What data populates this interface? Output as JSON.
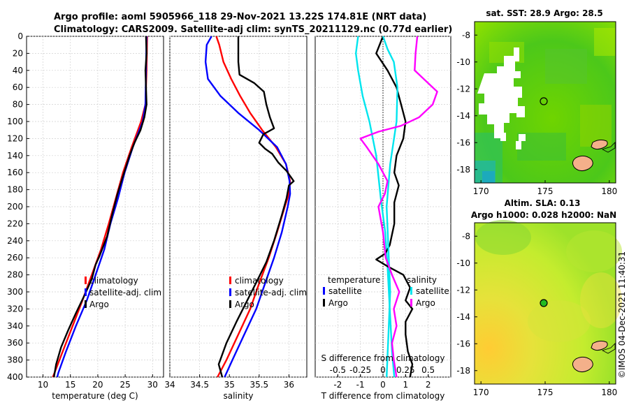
{
  "title": {
    "line1": "Argo profile: aoml 5905966_118 29-Nov-2021 13.22S 174.81E (NRT data)",
    "line2": "Climatology: CARS2009. Satellite-adj clim: synTS_20211129.nc (0.77d earlier)"
  },
  "y_ticks": [
    "0",
    "20",
    "40",
    "60",
    "80",
    "100",
    "120",
    "140",
    "160",
    "180",
    "200",
    "220",
    "240",
    "260",
    "280",
    "300",
    "320",
    "340",
    "360",
    "380",
    "400"
  ],
  "chart_data": [
    {
      "type": "line",
      "id": "temperature",
      "xlabel": "temperature (deg C)",
      "ylabel": "pressure",
      "xlim": [
        7,
        32
      ],
      "ylim": [
        400,
        0
      ],
      "x_ticks": [
        "10",
        "15",
        "20",
        "25",
        "30"
      ],
      "x_tick_values": [
        10,
        15,
        20,
        25,
        30
      ],
      "legend": [
        "climatology",
        "satellite-adj. clim",
        "Argo"
      ],
      "series": [
        {
          "name": "climatology",
          "color": "#ff0000",
          "points": [
            [
              29.0,
              0
            ],
            [
              28.9,
              40
            ],
            [
              28.7,
              80
            ],
            [
              27.9,
              100
            ],
            [
              26.2,
              130
            ],
            [
              24.6,
              160
            ],
            [
              23.3,
              190
            ],
            [
              22.0,
              220
            ],
            [
              20.6,
              250
            ],
            [
              18.9,
              280
            ],
            [
              17.2,
              310
            ],
            [
              15.4,
              340
            ],
            [
              13.6,
              370
            ],
            [
              12.1,
              395
            ],
            [
              11.8,
              400
            ]
          ]
        },
        {
          "name": "satellite-adj. clim",
          "color": "#0000ff",
          "points": [
            [
              28.9,
              0
            ],
            [
              28.8,
              40
            ],
            [
              28.7,
              80
            ],
            [
              28.2,
              100
            ],
            [
              26.4,
              130
            ],
            [
              24.9,
              160
            ],
            [
              23.7,
              190
            ],
            [
              22.3,
              220
            ],
            [
              21.2,
              250
            ],
            [
              19.6,
              280
            ],
            [
              18.0,
              310
            ],
            [
              16.0,
              340
            ],
            [
              14.2,
              370
            ],
            [
              12.8,
              395
            ],
            [
              12.6,
              400
            ]
          ]
        },
        {
          "name": "Argo",
          "color": "#000000",
          "points": [
            [
              28.8,
              0
            ],
            [
              28.9,
              20
            ],
            [
              28.7,
              40
            ],
            [
              28.8,
              60
            ],
            [
              28.9,
              80
            ],
            [
              28.5,
              95
            ],
            [
              27.8,
              110
            ],
            [
              26.7,
              125
            ],
            [
              25.8,
              140
            ],
            [
              24.8,
              160
            ],
            [
              23.6,
              185
            ],
            [
              22.6,
              210
            ],
            [
              21.7,
              235
            ],
            [
              20.3,
              258
            ],
            [
              19.6,
              268
            ],
            [
              18.9,
              285
            ],
            [
              17.5,
              305
            ],
            [
              16.0,
              325
            ],
            [
              14.6,
              345
            ],
            [
              13.3,
              365
            ],
            [
              12.4,
              385
            ],
            [
              12.0,
              400
            ]
          ]
        }
      ]
    },
    {
      "type": "line",
      "id": "salinity",
      "xlabel": "salinity",
      "ylabel": "pressure",
      "xlim": [
        34.0,
        36.3
      ],
      "ylim": [
        400,
        0
      ],
      "x_ticks": [
        "34",
        "34.5",
        "35",
        "35.5",
        "36"
      ],
      "x_tick_values": [
        34.0,
        34.5,
        35.0,
        35.5,
        36.0
      ],
      "legend": [
        "climatology",
        "satellite-adj. clim",
        "Argo"
      ],
      "series": [
        {
          "name": "climatology",
          "color": "#ff0000",
          "points": [
            [
              34.78,
              0
            ],
            [
              34.83,
              10
            ],
            [
              34.9,
              30
            ],
            [
              35.03,
              50
            ],
            [
              35.18,
              70
            ],
            [
              35.35,
              90
            ],
            [
              35.55,
              110
            ],
            [
              35.78,
              130
            ],
            [
              35.95,
              150
            ],
            [
              36.02,
              170
            ],
            [
              36.0,
              185
            ],
            [
              35.93,
              200
            ],
            [
              35.8,
              230
            ],
            [
              35.66,
              260
            ],
            [
              35.5,
              290
            ],
            [
              35.35,
              320
            ],
            [
              35.15,
              350
            ],
            [
              34.95,
              380
            ],
            [
              34.8,
              400
            ]
          ]
        },
        {
          "name": "satellite-adj. clim",
          "color": "#0000ff",
          "points": [
            [
              34.7,
              0
            ],
            [
              34.62,
              10
            ],
            [
              34.6,
              30
            ],
            [
              34.64,
              50
            ],
            [
              34.85,
              70
            ],
            [
              35.15,
              90
            ],
            [
              35.5,
              110
            ],
            [
              35.8,
              130
            ],
            [
              35.95,
              150
            ],
            [
              36.01,
              170
            ],
            [
              36.02,
              185
            ],
            [
              35.98,
              200
            ],
            [
              35.88,
              230
            ],
            [
              35.75,
              260
            ],
            [
              35.6,
              290
            ],
            [
              35.45,
              320
            ],
            [
              35.25,
              350
            ],
            [
              35.05,
              380
            ],
            [
              34.92,
              400
            ]
          ]
        },
        {
          "name": "Argo",
          "color": "#000000",
          "points": [
            [
              35.15,
              0
            ],
            [
              35.15,
              30
            ],
            [
              35.17,
              45
            ],
            [
              35.42,
              55
            ],
            [
              35.58,
              65
            ],
            [
              35.62,
              80
            ],
            [
              35.68,
              95
            ],
            [
              35.75,
              108
            ],
            [
              35.57,
              115
            ],
            [
              35.5,
              125
            ],
            [
              35.6,
              132
            ],
            [
              35.72,
              138
            ],
            [
              35.82,
              148
            ],
            [
              35.96,
              158
            ],
            [
              36.08,
              170
            ],
            [
              36.0,
              175
            ],
            [
              35.96,
              190
            ],
            [
              35.88,
              210
            ],
            [
              35.75,
              240
            ],
            [
              35.62,
              265
            ],
            [
              35.48,
              285
            ],
            [
              35.3,
              310
            ],
            [
              35.12,
              335
            ],
            [
              34.95,
              360
            ],
            [
              34.82,
              385
            ],
            [
              34.88,
              400
            ]
          ]
        }
      ]
    },
    {
      "type": "line",
      "id": "differences",
      "xlabel": "T difference from climatology",
      "x2label": "S difference from climatology",
      "ylabel": "pressure",
      "xlim": [
        -3,
        3
      ],
      "ylim": [
        400,
        0
      ],
      "x_ticks": [
        "-2",
        "-1",
        "0",
        "1",
        "2"
      ],
      "x_tick_values": [
        -2,
        -1,
        0,
        1,
        2
      ],
      "x2_ticks": [
        "-0.5",
        "-0.25",
        "0",
        "0.25",
        "0.5"
      ],
      "x2_tick_values": [
        -0.5,
        -0.25,
        0,
        0.25,
        0.5
      ],
      "legend_temperature_title": "temperature",
      "legend_salinity_title": "salinity",
      "legend_temperature": [
        "satellite",
        "Argo"
      ],
      "legend_salinity": [
        "satellite",
        "Argo"
      ],
      "series": [
        {
          "name": "temperature satellite",
          "color": "#00e5ee",
          "axis": "T",
          "points": [
            [
              -1.1,
              0
            ],
            [
              -1.2,
              20
            ],
            [
              -1.1,
              40
            ],
            [
              -0.9,
              70
            ],
            [
              -0.6,
              100
            ],
            [
              -0.3,
              140
            ],
            [
              -0.1,
              190
            ],
            [
              0.1,
              230
            ],
            [
              0.2,
              270
            ],
            [
              0.3,
              320
            ],
            [
              0.4,
              370
            ],
            [
              0.5,
              400
            ]
          ]
        },
        {
          "name": "temperature Argo",
          "color": "#000000",
          "axis": "T",
          "points": [
            [
              0.0,
              0
            ],
            [
              -0.3,
              20
            ],
            [
              0.2,
              40
            ],
            [
              0.6,
              60
            ],
            [
              0.7,
              70
            ],
            [
              0.8,
              80
            ],
            [
              1.0,
              100
            ],
            [
              0.9,
              120
            ],
            [
              0.6,
              140
            ],
            [
              0.5,
              160
            ],
            [
              0.7,
              175
            ],
            [
              0.5,
              195
            ],
            [
              0.5,
              220
            ],
            [
              0.3,
              245
            ],
            [
              0.1,
              255
            ],
            [
              -0.3,
              262
            ],
            [
              0.2,
              270
            ],
            [
              0.9,
              280
            ],
            [
              1.2,
              295
            ],
            [
              1.0,
              310
            ],
            [
              1.3,
              320
            ],
            [
              1.0,
              335
            ],
            [
              1.0,
              350
            ],
            [
              1.1,
              370
            ],
            [
              1.3,
              385
            ],
            [
              1.2,
              400
            ]
          ]
        },
        {
          "name": "salinity satellite",
          "color": "#00e5ee",
          "axis": "S",
          "points": [
            [
              0.0,
              0
            ],
            [
              0.05,
              15
            ],
            [
              0.12,
              30
            ],
            [
              0.16,
              60
            ],
            [
              0.15,
              100
            ],
            [
              0.08,
              150
            ],
            [
              0.04,
              200
            ],
            [
              0.06,
              250
            ],
            [
              0.08,
              300
            ],
            [
              0.06,
              350
            ],
            [
              0.04,
              400
            ]
          ]
        },
        {
          "name": "salinity Argo",
          "color": "#ff00ff",
          "axis": "S",
          "points": [
            [
              0.38,
              0
            ],
            [
              0.36,
              20
            ],
            [
              0.35,
              40
            ],
            [
              0.5,
              55
            ],
            [
              0.6,
              65
            ],
            [
              0.55,
              80
            ],
            [
              0.4,
              95
            ],
            [
              0.2,
              105
            ],
            [
              -0.05,
              112
            ],
            [
              -0.25,
              120
            ],
            [
              -0.18,
              130
            ],
            [
              -0.05,
              150
            ],
            [
              0.05,
              170
            ],
            [
              0.02,
              185
            ],
            [
              -0.05,
              200
            ],
            [
              0.0,
              230
            ],
            [
              0.03,
              260
            ],
            [
              0.1,
              280
            ],
            [
              0.18,
              300
            ],
            [
              0.12,
              320
            ],
            [
              0.15,
              340
            ],
            [
              0.1,
              360
            ],
            [
              0.12,
              380
            ],
            [
              0.15,
              400
            ]
          ]
        }
      ]
    }
  ],
  "maps": {
    "sst": {
      "title": "sat. SST: 28.9 Argo: 28.5",
      "lat_ticks": [
        "-8",
        "-10",
        "-12",
        "-14",
        "-16",
        "-18"
      ],
      "lon_ticks": [
        "170",
        "175",
        "180"
      ]
    },
    "sla": {
      "title_line1": "Altim. SLA: 0.13",
      "title_line2": "Argo h1000: 0.028 h2000: NaN",
      "lat_ticks": [
        "-8",
        "-10",
        "-12",
        "-14",
        "-16",
        "-18"
      ],
      "lon_ticks": [
        "170",
        "175",
        "180"
      ]
    },
    "float_position": {
      "lon": 174.81,
      "lat": -13.22
    }
  },
  "credit": "©IMOS 04-Dec-2021 11:40:31",
  "colors": {
    "climatology": "#ff0000",
    "satellite": "#0000ff",
    "argo": "#000000",
    "sat_diff": "#00e5ee",
    "argo_sal_diff": "#ff00ff"
  }
}
